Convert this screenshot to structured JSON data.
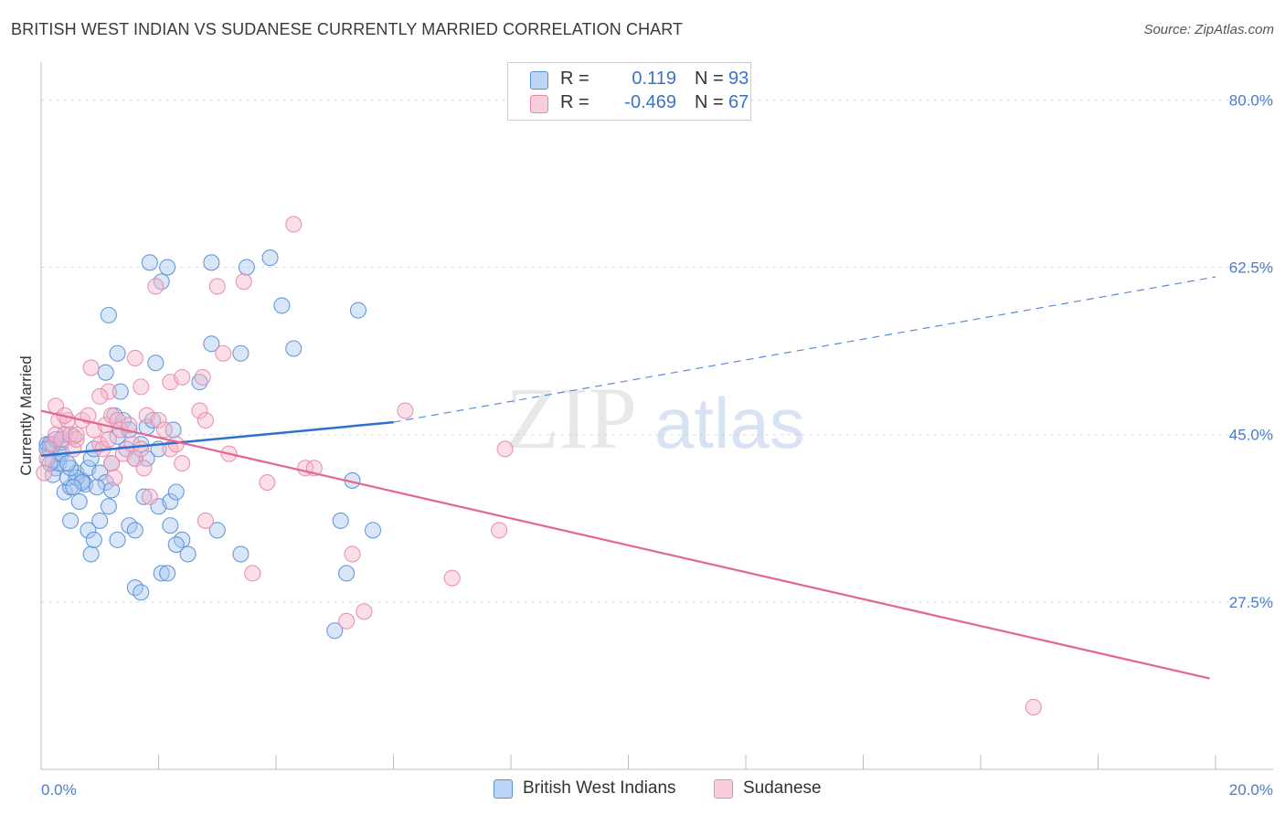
{
  "header": {
    "title": "BRITISH WEST INDIAN VS SUDANESE CURRENTLY MARRIED CORRELATION CHART",
    "source": "Source: ZipAtlas.com"
  },
  "watermark": {
    "zip": "ZIP",
    "atlas": "atlas"
  },
  "legend_top": {
    "rows": [
      {
        "r_label": "R =",
        "r_value": "0.119",
        "n_label": "N =",
        "n_value": "93"
      },
      {
        "r_label": "R =",
        "r_value": "-0.469",
        "n_label": "N =",
        "n_value": "67"
      }
    ]
  },
  "legend_bottom": {
    "items": [
      {
        "label": "British West Indians"
      },
      {
        "label": "Sudanese"
      }
    ]
  },
  "colors": {
    "blue_fill": "#a9c8f0",
    "blue_stroke": "#5a8fd6",
    "blue_line": "#2f6fce",
    "pink_fill": "#f6b9cc",
    "pink_stroke": "#e889a8",
    "pink_line": "#e0688f",
    "axis_text": "#4a7cc9",
    "grid": "#dddddd"
  },
  "chart_data": {
    "type": "scatter",
    "title": "BRITISH WEST INDIAN VS SUDANESE CURRENTLY MARRIED CORRELATION CHART",
    "xlabel": "",
    "ylabel": "Currently Married",
    "xlim": [
      0,
      20
    ],
    "ylim": [
      10,
      83
    ],
    "x_ticks": [
      {
        "value": 0,
        "label": "0.0%"
      },
      {
        "value": 20,
        "label": "20.0%"
      }
    ],
    "y_ticks": [
      {
        "value": 27.5,
        "label": "27.5%"
      },
      {
        "value": 45.0,
        "label": "45.0%"
      },
      {
        "value": 62.5,
        "label": "62.5%"
      },
      {
        "value": 80.0,
        "label": "80.0%"
      }
    ],
    "grid": true,
    "series": [
      {
        "name": "British West Indians",
        "r": 0.119,
        "n": 93,
        "trend": {
          "x0": 0,
          "y0": 42.8,
          "x1": 6.0,
          "y1": 46.3,
          "dashed_to_x": 20,
          "dashed_to_y": 61.5
        },
        "points": [
          [
            0.1,
            44.0
          ],
          [
            0.15,
            43.5
          ],
          [
            0.2,
            42.2
          ],
          [
            0.25,
            41.5
          ],
          [
            0.3,
            43.0
          ],
          [
            0.35,
            44.2
          ],
          [
            0.2,
            40.8
          ],
          [
            0.4,
            39.0
          ],
          [
            0.5,
            39.5
          ],
          [
            0.45,
            40.5
          ],
          [
            0.6,
            41.0
          ],
          [
            0.7,
            40.2
          ],
          [
            0.65,
            38.0
          ],
          [
            0.75,
            39.8
          ],
          [
            0.8,
            41.5
          ],
          [
            0.55,
            44.8
          ],
          [
            0.85,
            42.5
          ],
          [
            0.9,
            43.5
          ],
          [
            1.0,
            41.0
          ],
          [
            1.1,
            40.0
          ],
          [
            0.95,
            39.5
          ],
          [
            1.2,
            42.0
          ],
          [
            1.3,
            44.8
          ],
          [
            1.25,
            47.0
          ],
          [
            1.4,
            46.5
          ],
          [
            1.5,
            45.5
          ],
          [
            1.45,
            43.5
          ],
          [
            1.6,
            42.5
          ],
          [
            1.7,
            44.0
          ],
          [
            1.8,
            45.8
          ],
          [
            1.15,
            37.5
          ],
          [
            1.0,
            36.0
          ],
          [
            0.5,
            36.0
          ],
          [
            0.8,
            35.0
          ],
          [
            1.3,
            34.0
          ],
          [
            1.5,
            35.5
          ],
          [
            1.6,
            35.0
          ],
          [
            1.75,
            38.5
          ],
          [
            2.0,
            37.5
          ],
          [
            2.2,
            38.0
          ],
          [
            2.3,
            39.0
          ],
          [
            2.2,
            35.5
          ],
          [
            2.4,
            34.0
          ],
          [
            2.3,
            33.5
          ],
          [
            2.5,
            32.5
          ],
          [
            2.05,
            30.5
          ],
          [
            2.15,
            30.5
          ],
          [
            1.6,
            29.0
          ],
          [
            1.7,
            28.5
          ],
          [
            0.85,
            32.5
          ],
          [
            0.9,
            34.0
          ],
          [
            1.2,
            39.2
          ],
          [
            1.8,
            42.5
          ],
          [
            2.0,
            43.5
          ],
          [
            2.25,
            45.5
          ],
          [
            1.9,
            46.5
          ],
          [
            1.1,
            51.5
          ],
          [
            1.35,
            49.5
          ],
          [
            1.3,
            53.5
          ],
          [
            1.95,
            52.5
          ],
          [
            2.7,
            50.5
          ],
          [
            2.9,
            54.5
          ],
          [
            3.4,
            53.5
          ],
          [
            1.15,
            57.5
          ],
          [
            1.85,
            63.0
          ],
          [
            2.05,
            61.0
          ],
          [
            2.15,
            62.5
          ],
          [
            2.9,
            63.0
          ],
          [
            3.5,
            62.5
          ],
          [
            3.9,
            63.5
          ],
          [
            4.1,
            58.5
          ],
          [
            4.3,
            54.0
          ],
          [
            5.4,
            58.0
          ],
          [
            3.0,
            35.0
          ],
          [
            3.4,
            32.5
          ],
          [
            5.1,
            36.0
          ],
          [
            5.2,
            30.5
          ],
          [
            5.65,
            35.0
          ],
          [
            5.0,
            24.5
          ],
          [
            5.3,
            40.2
          ],
          [
            0.3,
            42.0
          ],
          [
            0.2,
            43.8
          ],
          [
            0.15,
            44.0
          ],
          [
            0.4,
            45.0
          ],
          [
            0.6,
            40.5
          ],
          [
            0.7,
            40.0
          ],
          [
            0.25,
            44.5
          ],
          [
            0.35,
            43.0
          ],
          [
            0.5,
            41.5
          ],
          [
            0.1,
            43.5
          ],
          [
            0.45,
            42.0
          ],
          [
            0.55,
            39.5
          ],
          [
            0.15,
            42.0
          ]
        ]
      },
      {
        "name": "Sudanese",
        "r": -0.469,
        "n": 67,
        "trend": {
          "x0": 0,
          "y0": 47.5,
          "x1": 19.9,
          "y1": 19.5
        },
        "points": [
          [
            0.05,
            41.0
          ],
          [
            0.1,
            42.5
          ],
          [
            0.2,
            44.0
          ],
          [
            0.25,
            45.0
          ],
          [
            0.3,
            46.5
          ],
          [
            0.35,
            44.5
          ],
          [
            0.45,
            46.5
          ],
          [
            0.5,
            45.0
          ],
          [
            0.55,
            43.5
          ],
          [
            0.6,
            44.5
          ],
          [
            0.7,
            46.5
          ],
          [
            0.8,
            47.0
          ],
          [
            0.9,
            45.5
          ],
          [
            1.0,
            44.0
          ],
          [
            1.05,
            43.5
          ],
          [
            1.1,
            46.0
          ],
          [
            1.15,
            44.5
          ],
          [
            1.2,
            47.0
          ],
          [
            1.3,
            46.5
          ],
          [
            1.35,
            45.5
          ],
          [
            1.4,
            43.0
          ],
          [
            1.5,
            46.0
          ],
          [
            1.55,
            44.0
          ],
          [
            1.6,
            42.5
          ],
          [
            1.7,
            43.5
          ],
          [
            1.75,
            41.5
          ],
          [
            1.8,
            47.0
          ],
          [
            2.0,
            46.5
          ],
          [
            2.1,
            45.5
          ],
          [
            2.2,
            43.5
          ],
          [
            2.3,
            44.0
          ],
          [
            2.4,
            42.0
          ],
          [
            2.7,
            47.5
          ],
          [
            2.8,
            46.5
          ],
          [
            3.2,
            43.0
          ],
          [
            1.2,
            42.0
          ],
          [
            1.25,
            40.5
          ],
          [
            1.85,
            38.5
          ],
          [
            0.85,
            52.0
          ],
          [
            1.15,
            49.5
          ],
          [
            1.7,
            50.0
          ],
          [
            1.6,
            53.0
          ],
          [
            2.2,
            50.5
          ],
          [
            2.4,
            51.0
          ],
          [
            2.75,
            51.0
          ],
          [
            3.1,
            53.5
          ],
          [
            1.95,
            60.5
          ],
          [
            3.0,
            60.5
          ],
          [
            3.45,
            61.0
          ],
          [
            4.3,
            67.0
          ],
          [
            3.85,
            40.0
          ],
          [
            4.5,
            41.5
          ],
          [
            4.65,
            41.5
          ],
          [
            6.2,
            47.5
          ],
          [
            7.9,
            43.5
          ],
          [
            3.6,
            30.5
          ],
          [
            5.2,
            25.5
          ],
          [
            5.5,
            26.5
          ],
          [
            5.3,
            32.5
          ],
          [
            7.0,
            30.0
          ],
          [
            7.8,
            35.0
          ],
          [
            2.8,
            36.0
          ],
          [
            0.25,
            48.0
          ],
          [
            1.0,
            49.0
          ],
          [
            0.4,
            47.0
          ],
          [
            0.6,
            45.0
          ],
          [
            16.9,
            16.5
          ]
        ]
      }
    ]
  }
}
